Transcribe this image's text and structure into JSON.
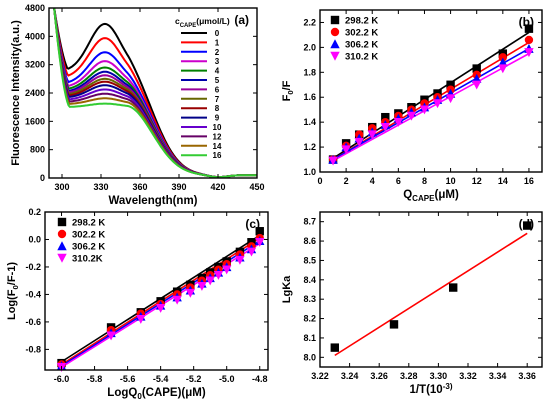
{
  "chart_data": [
    {
      "type": "line",
      "panel": "(a)",
      "xlabel": "Wavelength(nm)",
      "ylabel": "Fluorescence Intensity(a.u.)",
      "xlim": [
        290,
        450
      ],
      "ylim": [
        0,
        4800
      ],
      "x_ticks": [
        300,
        330,
        360,
        390,
        420,
        450
      ],
      "y_ticks": [
        0,
        800,
        1600,
        2400,
        3200,
        4000,
        4800
      ],
      "legend_title": "c_CAPE(μmol/L)",
      "legend_position": "top-right",
      "grid": false,
      "series": [
        {
          "name": "0",
          "color": "#000000",
          "peak": 4350,
          "valley": 3000
        },
        {
          "name": "1",
          "color": "#ff0000",
          "peak": 3950,
          "valley": 2820
        },
        {
          "name": "2",
          "color": "#0000ff",
          "peak": 3550,
          "valley": 2650
        },
        {
          "name": "3",
          "color": "#cc00cc",
          "peak": 3300,
          "valley": 2550
        },
        {
          "name": "4",
          "color": "#008000",
          "peak": 3120,
          "valley": 2480
        },
        {
          "name": "5",
          "color": "#0000aa",
          "peak": 3000,
          "valley": 2420
        },
        {
          "name": "6",
          "color": "#990099",
          "peak": 2900,
          "valley": 2380
        },
        {
          "name": "7",
          "color": "#666600",
          "peak": 2800,
          "valley": 2340
        },
        {
          "name": "8",
          "color": "#990000",
          "peak": 2720,
          "valley": 2300
        },
        {
          "name": "9",
          "color": "#000088",
          "peak": 2620,
          "valley": 2260
        },
        {
          "name": "10",
          "color": "#6600cc",
          "peak": 2500,
          "valley": 2200
        },
        {
          "name": "12",
          "color": "#660066",
          "peak": 2380,
          "valley": 2140
        },
        {
          "name": "14",
          "color": "#996600",
          "peak": 2250,
          "valley": 2080
        },
        {
          "name": "16",
          "color": "#33cc33",
          "peak": 2100,
          "valley": 2000
        }
      ]
    },
    {
      "type": "scatter",
      "panel": "(b)",
      "xlabel": "Q_CAPE(μM)",
      "ylabel": "F_0/F",
      "xlim": [
        0,
        17
      ],
      "ylim": [
        1.0,
        2.3
      ],
      "x_ticks": [
        0,
        2,
        4,
        6,
        8,
        10,
        12,
        14,
        16
      ],
      "y_ticks": [
        1.0,
        1.2,
        1.4,
        1.6,
        1.8,
        2.0,
        2.2
      ],
      "legend_position": "top-left",
      "grid": false,
      "x": [
        1,
        2,
        3,
        4,
        5,
        6,
        7,
        8,
        9,
        10,
        12,
        14,
        16
      ],
      "series": [
        {
          "name": "298.2 K",
          "color": "#000000",
          "marker": "square",
          "y": [
            1.1,
            1.23,
            1.3,
            1.36,
            1.44,
            1.47,
            1.52,
            1.58,
            1.63,
            1.7,
            1.83,
            1.95,
            2.15
          ]
        },
        {
          "name": "302.2 K",
          "color": "#ff0000",
          "marker": "circle",
          "y": [
            1.1,
            1.21,
            1.3,
            1.35,
            1.4,
            1.45,
            1.5,
            1.55,
            1.6,
            1.66,
            1.78,
            1.92,
            2.06
          ]
        },
        {
          "name": "306.2 K",
          "color": "#0000ff",
          "marker": "triangle-up",
          "y": [
            1.1,
            1.2,
            1.27,
            1.32,
            1.38,
            1.43,
            1.48,
            1.52,
            1.58,
            1.63,
            1.75,
            1.88,
            1.99
          ]
        },
        {
          "name": "310.2 K",
          "color": "#ff00ff",
          "marker": "triangle-down",
          "y": [
            1.09,
            1.18,
            1.24,
            1.3,
            1.36,
            1.4,
            1.45,
            1.5,
            1.55,
            1.59,
            1.7,
            1.83,
            1.96
          ]
        }
      ],
      "fit_lines": [
        {
          "color": "#000000",
          "x": [
            1,
            16
          ],
          "y": [
            1.11,
            2.12
          ]
        },
        {
          "color": "#ff0000",
          "x": [
            1,
            16
          ],
          "y": [
            1.1,
            2.04
          ]
        },
        {
          "color": "#0000ff",
          "x": [
            1,
            16
          ],
          "y": [
            1.1,
            1.99
          ]
        },
        {
          "color": "#ff00ff",
          "x": [
            1,
            16
          ],
          "y": [
            1.09,
            1.95
          ]
        }
      ]
    },
    {
      "type": "scatter",
      "panel": "(c)",
      "xlabel": "LogQ_0(CAPE)(μM)",
      "ylabel": "Log(F_0/F-1)",
      "xlim": [
        -6.1,
        -4.75
      ],
      "ylim": [
        -0.95,
        0.2
      ],
      "x_ticks": [
        -6.0,
        -5.8,
        -5.6,
        -5.4,
        -5.2,
        -5.0,
        -4.8
      ],
      "y_ticks": [
        -0.8,
        -0.6,
        -0.4,
        -0.2,
        0.0,
        0.2
      ],
      "legend_position": "top-left",
      "grid": false,
      "x": [
        -6.0,
        -5.7,
        -5.52,
        -5.4,
        -5.3,
        -5.22,
        -5.15,
        -5.1,
        -5.05,
        -5.0,
        -4.92,
        -4.85,
        -4.8
      ],
      "series": [
        {
          "name": "298.2 K",
          "color": "#000000",
          "marker": "square",
          "y": [
            -0.9,
            -0.64,
            -0.53,
            -0.45,
            -0.38,
            -0.33,
            -0.28,
            -0.24,
            -0.2,
            -0.16,
            -0.09,
            -0.02,
            0.06
          ]
        },
        {
          "name": "302.2 K",
          "color": "#ff0000",
          "marker": "circle",
          "y": [
            -0.91,
            -0.66,
            -0.54,
            -0.47,
            -0.4,
            -0.35,
            -0.3,
            -0.26,
            -0.22,
            -0.18,
            -0.11,
            -0.05,
            0.01
          ]
        },
        {
          "name": "306.2 K",
          "color": "#0000ff",
          "marker": "triangle-up",
          "y": [
            -0.92,
            -0.68,
            -0.56,
            -0.48,
            -0.42,
            -0.37,
            -0.32,
            -0.28,
            -0.24,
            -0.2,
            -0.13,
            -0.07,
            -0.01
          ]
        },
        {
          "name": "310.2K",
          "color": "#ff00ff",
          "marker": "triangle-down",
          "y": [
            -0.93,
            -0.7,
            -0.58,
            -0.5,
            -0.44,
            -0.39,
            -0.34,
            -0.3,
            -0.26,
            -0.22,
            -0.15,
            -0.09,
            -0.02
          ]
        }
      ],
      "fit_lines": [
        {
          "color": "#000000",
          "x": [
            -6.0,
            -4.8
          ],
          "y": [
            -0.89,
            0.03
          ]
        },
        {
          "color": "#ff0000",
          "x": [
            -6.0,
            -4.8
          ],
          "y": [
            -0.91,
            0.01
          ]
        },
        {
          "color": "#0000ff",
          "x": [
            -6.0,
            -4.8
          ],
          "y": [
            -0.92,
            -0.01
          ]
        },
        {
          "color": "#ff00ff",
          "x": [
            -6.0,
            -4.8
          ],
          "y": [
            -0.93,
            -0.03
          ]
        }
      ]
    },
    {
      "type": "scatter",
      "panel": "(d)",
      "xlabel": "1/T(10^-3)",
      "ylabel": "LgKa",
      "xlim": [
        3.22,
        3.37
      ],
      "ylim": [
        7.95,
        8.75
      ],
      "x_ticks": [
        3.22,
        3.24,
        3.26,
        3.28,
        3.3,
        3.32,
        3.34,
        3.36
      ],
      "y_ticks": [
        8.0,
        8.1,
        8.2,
        8.3,
        8.4,
        8.5,
        8.6,
        8.7
      ],
      "legend_position": "none",
      "grid": false,
      "x": [
        3.23,
        3.27,
        3.31,
        3.36
      ],
      "series": [
        {
          "name": "",
          "color": "#000000",
          "marker": "square",
          "y": [
            8.05,
            8.17,
            8.36,
            8.68
          ]
        }
      ],
      "fit_lines": [
        {
          "color": "#ff0000",
          "x": [
            3.23,
            3.36
          ],
          "y": [
            8.01,
            8.64
          ]
        }
      ]
    }
  ]
}
